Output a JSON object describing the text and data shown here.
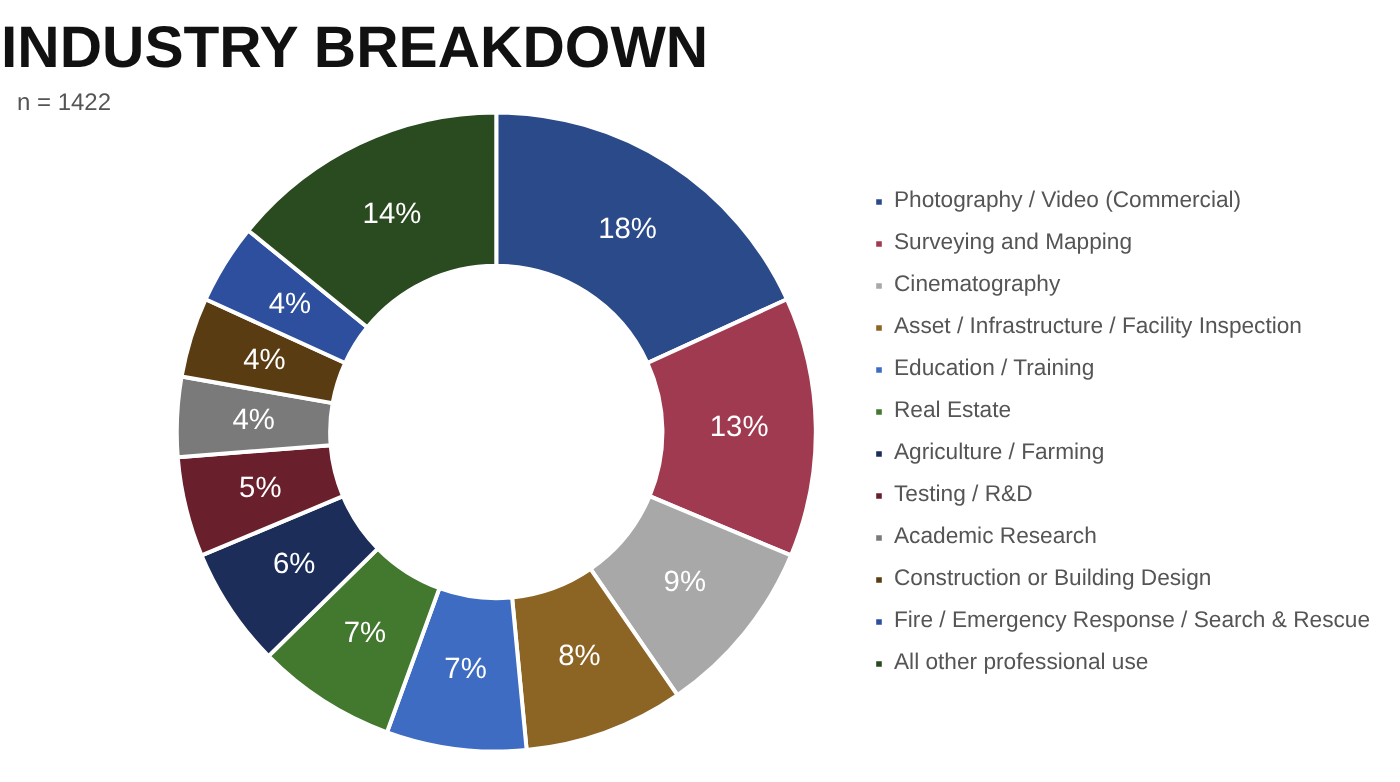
{
  "chart_data": {
    "type": "donut",
    "title": "INDUSTRY BREAKDOWN",
    "annotations": [
      "n = 1422"
    ],
    "categories": [
      "Photography / Video (Commercial)",
      "Surveying and Mapping",
      "Cinematography",
      "Asset / Infrastructure / Facility Inspection",
      "Education / Training",
      "Real Estate",
      "Agriculture / Farming",
      "Testing / R&D",
      "Academic Research",
      "Construction or Building Design",
      "Fire / Emergency Response / Search & Rescue",
      "All other professional use"
    ],
    "values": [
      18,
      13,
      9,
      8,
      7,
      7,
      6,
      5,
      4,
      4,
      4,
      14
    ],
    "value_labels": [
      "18%",
      "13%",
      "9%",
      "8%",
      "7%",
      "7%",
      "6%",
      "5%",
      "4%",
      "4%",
      "4%",
      "14%"
    ],
    "colors": [
      "#2b4a8a",
      "#a03a50",
      "#a8a8a8",
      "#8c6424",
      "#3d6cc2",
      "#43782f",
      "#1c2d5a",
      "#6a1f2c",
      "#7a7a7a",
      "#5a3c12",
      "#2d4f9e",
      "#2a4a20"
    ],
    "legend": "right"
  }
}
